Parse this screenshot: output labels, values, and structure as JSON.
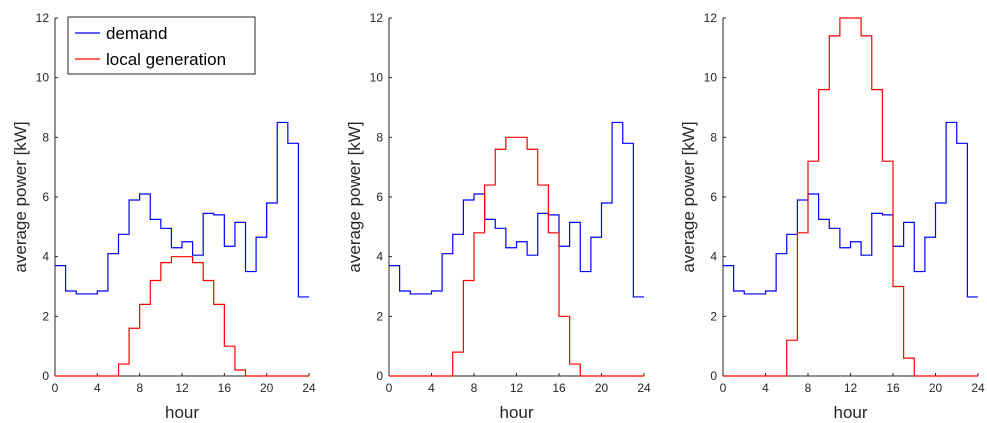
{
  "colors": {
    "demand": "#0000ff",
    "local_generation": "#ff0000",
    "axis": "#262626"
  },
  "legend": {
    "entries": [
      {
        "label": "demand",
        "series": "demand"
      },
      {
        "label": "local generation",
        "series": "local_generation"
      }
    ]
  },
  "chart_data": [
    {
      "type": "line",
      "step": "post",
      "xlabel": "hour",
      "ylabel": "average power [kW]",
      "xlim": [
        0,
        24
      ],
      "ylim": [
        0,
        12
      ],
      "xticks": [
        0,
        4,
        8,
        12,
        16,
        20,
        24
      ],
      "yticks": [
        0,
        2,
        4,
        6,
        8,
        10,
        12
      ],
      "legend_position": "top-left",
      "x": [
        0,
        1,
        2,
        3,
        4,
        5,
        6,
        7,
        8,
        9,
        10,
        11,
        12,
        13,
        14,
        15,
        16,
        17,
        18,
        19,
        20,
        21,
        22,
        23,
        24
      ],
      "series": [
        {
          "name": "demand",
          "color": "#0000ff",
          "values": [
            3.7,
            2.85,
            2.75,
            2.75,
            2.85,
            4.1,
            4.75,
            5.9,
            6.1,
            5.25,
            4.95,
            4.3,
            4.5,
            4.05,
            5.45,
            5.4,
            4.35,
            5.15,
            3.5,
            4.65,
            5.8,
            8.5,
            7.8,
            2.65,
            2.65
          ]
        },
        {
          "name": "local generation",
          "color": "#ff0000",
          "values": [
            0,
            0,
            0,
            0,
            0,
            0,
            0.4,
            1.6,
            2.4,
            3.2,
            3.8,
            4.0,
            4.0,
            3.8,
            3.2,
            2.4,
            1.0,
            0.2,
            0,
            0,
            0,
            0,
            0,
            0,
            0
          ]
        }
      ]
    },
    {
      "type": "line",
      "step": "post",
      "xlabel": "hour",
      "ylabel": "average power [kW]",
      "xlim": [
        0,
        24
      ],
      "ylim": [
        0,
        12
      ],
      "xticks": [
        0,
        4,
        8,
        12,
        16,
        20,
        24
      ],
      "yticks": [
        0,
        2,
        4,
        6,
        8,
        10,
        12
      ],
      "x": [
        0,
        1,
        2,
        3,
        4,
        5,
        6,
        7,
        8,
        9,
        10,
        11,
        12,
        13,
        14,
        15,
        16,
        17,
        18,
        19,
        20,
        21,
        22,
        23,
        24
      ],
      "series": [
        {
          "name": "demand",
          "color": "#0000ff",
          "values": [
            3.7,
            2.85,
            2.75,
            2.75,
            2.85,
            4.1,
            4.75,
            5.9,
            6.1,
            5.25,
            4.95,
            4.3,
            4.5,
            4.05,
            5.45,
            5.4,
            4.35,
            5.15,
            3.5,
            4.65,
            5.8,
            8.5,
            7.8,
            2.65,
            2.65
          ]
        },
        {
          "name": "local generation",
          "color": "#ff0000",
          "values": [
            0,
            0,
            0,
            0,
            0,
            0,
            0.8,
            3.2,
            4.8,
            6.4,
            7.6,
            8.0,
            8.0,
            7.6,
            6.4,
            4.8,
            2.0,
            0.4,
            0,
            0,
            0,
            0,
            0,
            0,
            0
          ]
        }
      ]
    },
    {
      "type": "line",
      "step": "post",
      "xlabel": "hour",
      "ylabel": "average power [kW]",
      "xlim": [
        0,
        24
      ],
      "ylim": [
        0,
        12
      ],
      "xticks": [
        0,
        4,
        8,
        12,
        16,
        20,
        24
      ],
      "yticks": [
        0,
        2,
        4,
        6,
        8,
        10,
        12
      ],
      "x": [
        0,
        1,
        2,
        3,
        4,
        5,
        6,
        7,
        8,
        9,
        10,
        11,
        12,
        13,
        14,
        15,
        16,
        17,
        18,
        19,
        20,
        21,
        22,
        23,
        24
      ],
      "series": [
        {
          "name": "demand",
          "color": "#0000ff",
          "values": [
            3.7,
            2.85,
            2.75,
            2.75,
            2.85,
            4.1,
            4.75,
            5.9,
            6.1,
            5.25,
            4.95,
            4.3,
            4.5,
            4.05,
            5.45,
            5.4,
            4.35,
            5.15,
            3.5,
            4.65,
            5.8,
            8.5,
            7.8,
            2.65,
            2.65
          ]
        },
        {
          "name": "local generation",
          "color": "#ff0000",
          "values": [
            0,
            0,
            0,
            0,
            0,
            0,
            1.2,
            4.8,
            7.2,
            9.6,
            11.4,
            12.0,
            12.0,
            11.4,
            9.6,
            7.2,
            3.0,
            0.6,
            0,
            0,
            0,
            0,
            0,
            0,
            0
          ]
        }
      ]
    }
  ]
}
